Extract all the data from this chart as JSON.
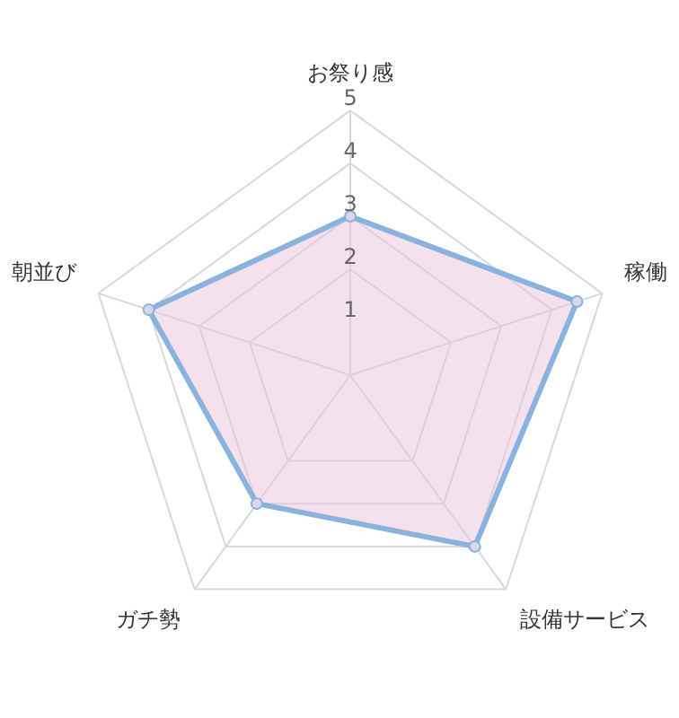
{
  "chart_data": {
    "type": "radar",
    "categories": [
      "お祭り感",
      "稼働",
      "設備サービス",
      "ガチ勢",
      "朝並び"
    ],
    "series": [
      {
        "color": "#8ab2de",
        "values": [
          3,
          4.5,
          4,
          3,
          4
        ]
      }
    ],
    "ylim": [
      0,
      5
    ],
    "yticks": [
      1,
      2,
      3,
      4,
      5
    ],
    "marker": "circle",
    "legend": false
  }
}
